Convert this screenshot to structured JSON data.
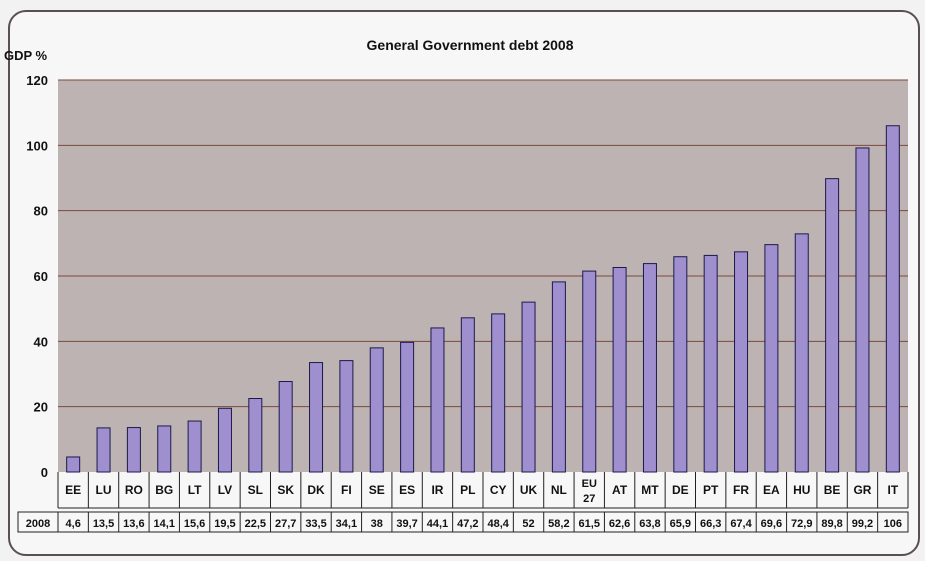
{
  "chart_data": {
    "type": "bar",
    "title": "General Government debt 2008",
    "ylabel": "GDP %",
    "ylim": [
      0,
      120
    ],
    "yticks": [
      0,
      20,
      40,
      60,
      80,
      100,
      120
    ],
    "grid": true,
    "categories": [
      "EE",
      "LU",
      "RO",
      "BG",
      "LT",
      "LV",
      "SL",
      "SK",
      "DK",
      "FI",
      "SE",
      "ES",
      "IR",
      "PL",
      "CY",
      "UK",
      "NL",
      "EU 27",
      "AT",
      "MT",
      "DE",
      "PT",
      "FR",
      "EA",
      "HU",
      "BE",
      "GR",
      "IT"
    ],
    "series": [
      {
        "name": "2008",
        "values": [
          4.6,
          13.5,
          13.6,
          14.1,
          15.6,
          19.5,
          22.5,
          27.7,
          33.5,
          34.1,
          38,
          39.7,
          44.1,
          47.2,
          48.4,
          52,
          58.2,
          61.5,
          62.6,
          63.8,
          65.9,
          66.3,
          67.4,
          69.6,
          72.9,
          89.8,
          99.2,
          106
        ],
        "labels": [
          "4,6",
          "13,5",
          "13,6",
          "14,1",
          "15,6",
          "19,5",
          "22,5",
          "27,7",
          "33,5",
          "34,1",
          "38",
          "39,7",
          "44,1",
          "47,2",
          "48,4",
          "52",
          "58,2",
          "61,5",
          "62,6",
          "63,8",
          "65,9",
          "66,3",
          "67,4",
          "69,6",
          "72,9",
          "89,8",
          "99,2",
          "106"
        ]
      }
    ]
  },
  "colors": {
    "plot_background": "#bdb3b3",
    "bar_fill": "#9f8fcf",
    "bar_stroke": "#1a1a4a",
    "gridline": "#7a4a3a"
  }
}
